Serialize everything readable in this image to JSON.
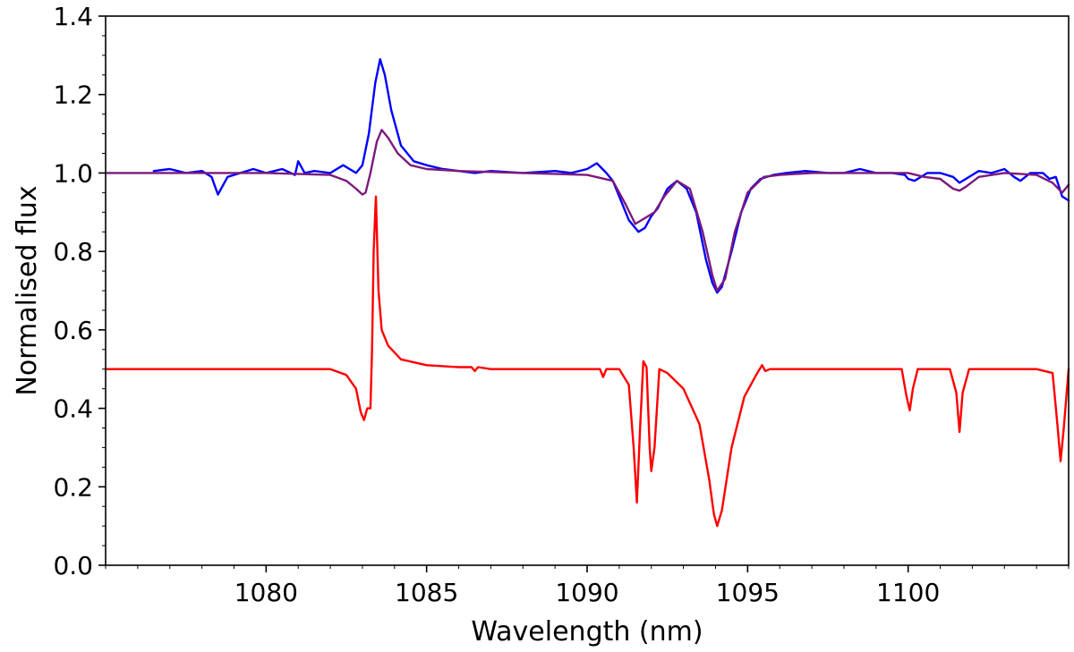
{
  "chart_data": {
    "type": "line",
    "title": "",
    "xlabel": "Wavelength (nm)",
    "ylabel": "Normalised flux",
    "xlim": [
      1075,
      1105
    ],
    "ylim": [
      0.0,
      1.4
    ],
    "xticks": [
      1080,
      1085,
      1090,
      1095,
      1100
    ],
    "xtick_labels": [
      "1080",
      "1085",
      "1090",
      "1095",
      "1100"
    ],
    "yticks": [
      0.0,
      0.2,
      0.4,
      0.6,
      0.8,
      1.0,
      1.2,
      1.4
    ],
    "ytick_labels": [
      "0.0",
      "0.2",
      "0.4",
      "0.6",
      "0.8",
      "1.0",
      "1.2",
      "1.4"
    ],
    "grid": false,
    "legend": "none",
    "series": [
      {
        "color": "#0000ff",
        "x": [
          1076.5,
          1077.0,
          1077.5,
          1078.0,
          1078.3,
          1078.5,
          1078.8,
          1079.2,
          1079.6,
          1080.0,
          1080.5,
          1080.9,
          1081.0,
          1081.2,
          1081.5,
          1082.0,
          1082.4,
          1082.8,
          1083.0,
          1083.2,
          1083.4,
          1083.55,
          1083.7,
          1083.9,
          1084.2,
          1084.6,
          1085.0,
          1085.5,
          1086.0,
          1086.5,
          1087.0,
          1088.0,
          1089.0,
          1089.5,
          1090.0,
          1090.3,
          1090.6,
          1090.8,
          1091.0,
          1091.3,
          1091.6,
          1091.8,
          1092.0,
          1092.2,
          1092.5,
          1092.8,
          1093.1,
          1093.4,
          1093.7,
          1093.9,
          1094.05,
          1094.2,
          1094.5,
          1094.8,
          1095.1,
          1095.4,
          1095.8,
          1096.2,
          1096.8,
          1097.5,
          1098.0,
          1098.5,
          1099.0,
          1099.5,
          1099.9,
          1100.0,
          1100.2,
          1100.6,
          1101.0,
          1101.4,
          1101.6,
          1101.8,
          1102.2,
          1102.6,
          1103.0,
          1103.3,
          1103.5,
          1103.8,
          1104.2,
          1104.4,
          1104.6,
          1104.8,
          1105.0
        ],
        "y": [
          1.005,
          1.01,
          1.0,
          1.005,
          0.99,
          0.945,
          0.99,
          1.0,
          1.01,
          1.0,
          1.01,
          0.995,
          1.03,
          1.0,
          1.005,
          1.0,
          1.02,
          1.0,
          1.02,
          1.1,
          1.23,
          1.29,
          1.25,
          1.16,
          1.07,
          1.03,
          1.02,
          1.01,
          1.005,
          1.0,
          1.005,
          1.0,
          1.005,
          1.0,
          1.01,
          1.025,
          1.0,
          0.98,
          0.94,
          0.88,
          0.85,
          0.86,
          0.89,
          0.91,
          0.96,
          0.98,
          0.96,
          0.9,
          0.78,
          0.72,
          0.695,
          0.71,
          0.8,
          0.9,
          0.96,
          0.985,
          0.995,
          1.0,
          1.005,
          1.0,
          1.0,
          1.01,
          1.0,
          1.0,
          0.995,
          0.985,
          0.98,
          1.0,
          1.0,
          0.99,
          0.975,
          0.985,
          1.005,
          1.0,
          1.01,
          0.99,
          0.98,
          1.0,
          1.0,
          0.985,
          0.99,
          0.94,
          0.93
        ]
      },
      {
        "color": "#7b1a7b",
        "x": [
          1075.0,
          1080.0,
          1082.0,
          1082.5,
          1082.8,
          1083.0,
          1083.1,
          1083.25,
          1083.45,
          1083.6,
          1083.8,
          1084.1,
          1084.5,
          1085.0,
          1086.0,
          1088.0,
          1090.0,
          1090.8,
          1091.2,
          1091.5,
          1091.8,
          1092.1,
          1092.4,
          1092.8,
          1093.2,
          1093.6,
          1093.9,
          1094.05,
          1094.3,
          1094.6,
          1095.0,
          1095.5,
          1096.0,
          1097.0,
          1100.0,
          1100.5,
          1101.0,
          1101.4,
          1101.6,
          1101.8,
          1102.2,
          1103.0,
          1104.0,
          1104.5,
          1104.8,
          1105.0
        ],
        "y": [
          1.0,
          1.0,
          0.995,
          0.98,
          0.96,
          0.945,
          0.95,
          1.0,
          1.08,
          1.11,
          1.09,
          1.05,
          1.02,
          1.01,
          1.005,
          1.0,
          0.995,
          0.98,
          0.92,
          0.87,
          0.885,
          0.9,
          0.94,
          0.98,
          0.96,
          0.85,
          0.74,
          0.7,
          0.73,
          0.85,
          0.95,
          0.99,
          0.995,
          1.0,
          1.0,
          0.99,
          0.985,
          0.96,
          0.955,
          0.965,
          0.99,
          1.0,
          0.995,
          0.975,
          0.95,
          0.97
        ]
      },
      {
        "color": "#ff0000",
        "x": [
          1075.0,
          1080.0,
          1082.0,
          1082.5,
          1082.8,
          1082.95,
          1083.05,
          1083.15,
          1083.25,
          1083.3,
          1083.35,
          1083.42,
          1083.5,
          1083.6,
          1083.8,
          1084.2,
          1085.0,
          1086.0,
          1086.4,
          1086.5,
          1086.6,
          1087.0,
          1090.0,
          1090.4,
          1090.5,
          1090.6,
          1091.0,
          1091.3,
          1091.45,
          1091.55,
          1091.65,
          1091.75,
          1091.85,
          1091.95,
          1092.0,
          1092.1,
          1092.25,
          1092.5,
          1093.0,
          1093.5,
          1093.8,
          1093.95,
          1094.05,
          1094.2,
          1094.5,
          1094.9,
          1095.3,
          1095.45,
          1095.55,
          1095.7,
          1096.0,
          1099.0,
          1099.8,
          1099.95,
          1100.05,
          1100.15,
          1100.3,
          1101.3,
          1101.5,
          1101.6,
          1101.7,
          1101.9,
          1104.0,
          1104.5,
          1104.65,
          1104.75,
          1104.85,
          1105.0
        ],
        "y": [
          0.5,
          0.5,
          0.5,
          0.485,
          0.45,
          0.39,
          0.37,
          0.4,
          0.4,
          0.55,
          0.8,
          0.94,
          0.7,
          0.6,
          0.56,
          0.525,
          0.51,
          0.505,
          0.505,
          0.495,
          0.505,
          0.5,
          0.5,
          0.5,
          0.48,
          0.5,
          0.5,
          0.46,
          0.3,
          0.16,
          0.35,
          0.52,
          0.505,
          0.3,
          0.24,
          0.3,
          0.5,
          0.49,
          0.45,
          0.36,
          0.22,
          0.13,
          0.1,
          0.14,
          0.3,
          0.43,
          0.49,
          0.51,
          0.495,
          0.5,
          0.5,
          0.5,
          0.5,
          0.43,
          0.395,
          0.45,
          0.5,
          0.5,
          0.44,
          0.34,
          0.44,
          0.5,
          0.5,
          0.49,
          0.36,
          0.265,
          0.35,
          0.5
        ]
      }
    ]
  }
}
